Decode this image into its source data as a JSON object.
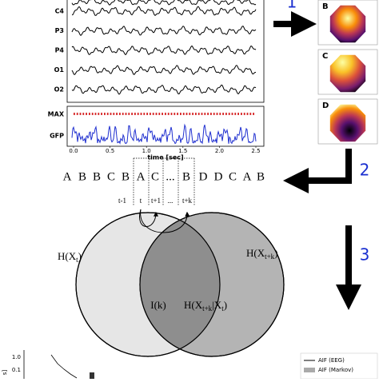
{
  "panel1": {
    "number": "1",
    "channels": [
      "C4",
      "P3",
      "P4",
      "O1",
      "O2"
    ],
    "max_label": "MAX",
    "gfp_label": "GFP",
    "x_ticks": [
      "0.0",
      "0.5",
      "1.0",
      "1.5",
      "2.0",
      "2.5"
    ],
    "x_label": "time [sec]",
    "maps": [
      "B",
      "C",
      "D"
    ]
  },
  "panel2": {
    "number": "2",
    "sequence": [
      "A",
      "B",
      "B",
      "C",
      "B",
      "A",
      "C",
      "...",
      "B",
      "D",
      "D",
      "C",
      "A",
      "B"
    ],
    "time_labels": [
      "t-1",
      "t",
      "t+1",
      "...",
      "t+k"
    ]
  },
  "panel3": {
    "number": "3",
    "left": {
      "main": "H(X",
      "sub": "t",
      "close": ")"
    },
    "right": {
      "main": "H(X",
      "sub": "t+k",
      "close": ")"
    },
    "middle": "I(k)",
    "conditional": {
      "main": "H(X",
      "sub": "t+k",
      "bar": "|X",
      "sub2": "t",
      "close": ")"
    }
  },
  "plot": {
    "y_ticks": [
      "1.0",
      "0.1"
    ],
    "y_label": "s]",
    "legend": [
      "AIF (EEG)",
      "AIF (Markov)"
    ]
  }
}
